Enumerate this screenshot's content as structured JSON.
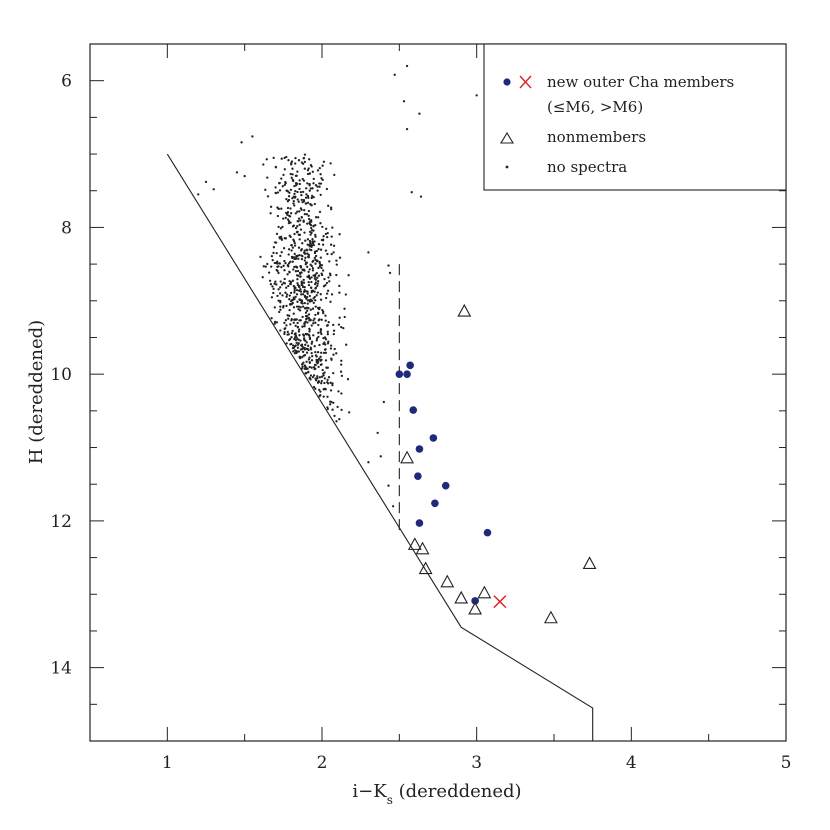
{
  "chart_data": {
    "type": "scatter",
    "title": "",
    "xlabel_main": "i−K",
    "xlabel_sub": "s",
    "xlabel_rest": " (dereddened)",
    "ylabel": "H (dereddened)",
    "xlim": [
      0.5,
      5
    ],
    "ylim": [
      15,
      5.5
    ],
    "y_inverted": true,
    "xticks": [
      1,
      2,
      3,
      4,
      5
    ],
    "yticks": [
      6,
      8,
      10,
      12,
      14
    ],
    "grid": false,
    "legend_position": "top-right",
    "legend": {
      "members_label": "new outer Cha members",
      "members_sublabel": "(≤M6, >M6)",
      "nonmembers_label": "nonmembers",
      "nospectra_label": "no spectra"
    },
    "colors": {
      "members_early": "#1f2a7a",
      "members_late": "#e0202a",
      "nonmembers": "#222222",
      "nospectra": "#222222",
      "lines": "#222222"
    },
    "series": [
      {
        "name": "new outer Cha members (≤M6)",
        "marker": "filled-circle",
        "points": [
          [
            2.5,
            10.0
          ],
          [
            2.55,
            10.0
          ],
          [
            2.57,
            9.88
          ],
          [
            2.59,
            10.49
          ],
          [
            2.72,
            10.87
          ],
          [
            2.63,
            11.02
          ],
          [
            2.62,
            11.39
          ],
          [
            2.8,
            11.52
          ],
          [
            2.73,
            11.76
          ],
          [
            2.63,
            12.03
          ],
          [
            3.07,
            12.16
          ],
          [
            2.99,
            13.09
          ]
        ]
      },
      {
        "name": "new outer Cha members (>M6)",
        "marker": "cross",
        "points": [
          [
            3.15,
            13.1
          ]
        ]
      },
      {
        "name": "nonmembers",
        "marker": "open-triangle",
        "points": [
          [
            2.92,
            9.14
          ],
          [
            2.55,
            11.14
          ],
          [
            2.6,
            12.32
          ],
          [
            2.65,
            12.38
          ],
          [
            2.67,
            12.65
          ],
          [
            2.81,
            12.83
          ],
          [
            2.9,
            13.05
          ],
          [
            2.99,
            13.2
          ],
          [
            3.05,
            12.98
          ],
          [
            3.48,
            13.32
          ],
          [
            3.73,
            12.58
          ]
        ]
      },
      {
        "name": "no spectra",
        "marker": "dot",
        "points": [
          [
            3.0,
            6.2
          ],
          [
            2.55,
            5.8
          ],
          [
            2.47,
            5.92
          ],
          [
            2.53,
            6.28
          ],
          [
            2.55,
            6.66
          ],
          [
            2.63,
            6.45
          ],
          [
            2.58,
            7.52
          ],
          [
            2.64,
            7.58
          ],
          [
            2.3,
            8.34
          ],
          [
            2.43,
            8.52
          ],
          [
            2.44,
            8.62
          ],
          [
            2.4,
            10.38
          ],
          [
            2.38,
            11.12
          ],
          [
            2.43,
            11.52
          ],
          [
            2.46,
            11.8
          ],
          [
            2.3,
            11.2
          ],
          [
            2.36,
            10.8
          ],
          [
            1.2,
            7.55
          ],
          [
            1.25,
            7.38
          ],
          [
            1.3,
            7.48
          ],
          [
            1.55,
            6.76
          ],
          [
            1.48,
            6.84
          ],
          [
            1.45,
            7.25
          ],
          [
            1.5,
            7.3
          ]
        ]
      }
    ],
    "nospectra_cloud": {
      "count": 900,
      "x_range": [
        1.35,
        2.25
      ],
      "y_range": [
        6.7,
        11.2
      ]
    },
    "boundary_line": [
      [
        1.0,
        7.0
      ],
      [
        2.9,
        13.45
      ],
      [
        3.75,
        14.55
      ],
      [
        3.75,
        15.0
      ]
    ],
    "dashed_line": [
      [
        2.5,
        8.5
      ],
      [
        2.5,
        12.2
      ]
    ]
  }
}
